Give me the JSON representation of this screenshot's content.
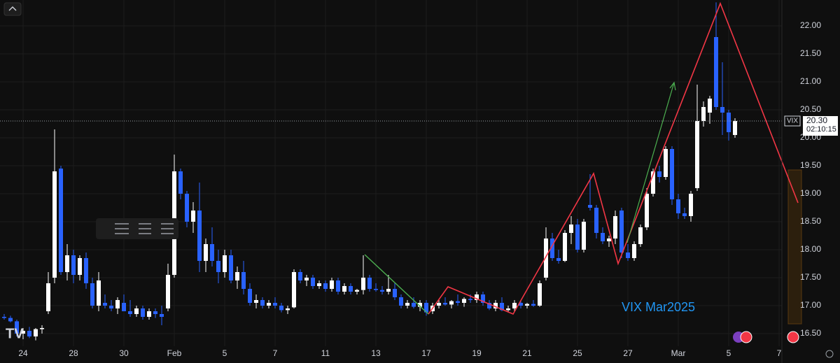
{
  "chart_data": {
    "type": "candlestick",
    "symbol": "VIX",
    "annotation": "VIX Mar2025",
    "countdown": "02:10:15",
    "last_price": {
      "value": 20.3,
      "label": "20.30"
    },
    "up_color": "#ffffff",
    "down_color": "#2962ff",
    "categories": [
      null,
      null,
      null,
      "24",
      null,
      null,
      null,
      null,
      null,
      null,
      null,
      "28",
      null,
      null,
      null,
      null,
      null,
      null,
      null,
      "30",
      null,
      null,
      null,
      null,
      null,
      null,
      null,
      "Feb",
      null,
      null,
      null,
      null,
      null,
      null,
      null,
      "5",
      null,
      null,
      null,
      null,
      null,
      null,
      null,
      "7",
      null,
      null,
      null,
      null,
      null,
      null,
      null,
      "11",
      null,
      null,
      null,
      null,
      null,
      null,
      null,
      "13",
      null,
      null,
      null,
      null,
      null,
      null,
      null,
      "17",
      null,
      null,
      null,
      null,
      null,
      null,
      null,
      "19",
      null,
      null,
      null,
      null,
      null,
      null,
      null,
      "21",
      null,
      null,
      null,
      null,
      null,
      null,
      null,
      "25",
      null,
      null,
      null,
      null,
      null,
      null,
      null,
      "27",
      null,
      null,
      null,
      null,
      null,
      null,
      null,
      "Mar",
      null,
      null,
      null,
      null,
      null,
      null,
      null,
      "5",
      null,
      null,
      null,
      null,
      null,
      null,
      null,
      "7"
    ],
    "open": [
      16.8,
      16.78,
      16.72,
      16.5,
      16.55,
      16.45,
      16.58,
      16.9,
      17.5,
      19.45,
      17.6,
      17.9,
      17.55,
      17.85,
      17.4,
      17.0,
      17.05,
      17.0,
      16.95,
      17.05,
      16.9,
      16.85,
      16.95,
      16.8,
      16.9,
      16.85,
      16.95,
      17.55,
      19.4,
      19.0,
      18.5,
      18.7,
      17.8,
      18.1,
      17.8,
      17.6,
      17.9,
      17.45,
      17.6,
      17.3,
      17.05,
      17.1,
      17.0,
      17.05,
      17.0,
      16.92,
      16.97,
      17.6,
      17.45,
      17.5,
      17.35,
      17.4,
      17.3,
      17.45,
      17.25,
      17.35,
      17.25,
      17.28,
      17.5,
      17.3,
      17.28,
      17.25,
      17.3,
      17.15,
      17.0,
      17.05,
      16.98,
      17.05,
      16.9,
      17.0,
      17.05,
      17.02,
      17.08,
      17.05,
      17.12,
      17.1,
      17.2,
      17.05,
      16.95,
      17.05,
      16.92,
      16.95,
      17.05,
      17.0,
      17.03,
      17.0,
      17.5,
      18.2,
      17.85,
      17.8,
      18.3,
      18.45,
      18.0,
      18.8,
      18.75,
      18.3,
      18.15,
      18.2,
      18.7,
      17.95,
      17.85,
      18.1,
      18.4,
      19.0,
      19.4,
      19.3,
      19.8,
      18.9,
      18.65,
      18.6,
      19.1,
      20.3,
      20.45,
      21.8,
      20.55,
      20.45,
      20.05,
      null,
      null,
      null,
      null,
      null,
      null,
      null
    ],
    "high": [
      16.85,
      16.82,
      16.75,
      16.6,
      16.62,
      16.6,
      16.65,
      17.6,
      20.15,
      19.5,
      18.1,
      18.0,
      17.9,
      17.95,
      17.5,
      17.6,
      17.2,
      17.1,
      17.15,
      17.2,
      17.1,
      17.0,
      17.0,
      16.95,
      16.95,
      17.0,
      17.75,
      19.7,
      19.45,
      19.05,
      18.85,
      19.2,
      18.2,
      18.4,
      18.0,
      18.0,
      18.0,
      17.7,
      17.8,
      17.4,
      17.2,
      17.15,
      17.1,
      17.15,
      17.05,
      17.0,
      17.65,
      17.65,
      17.55,
      17.55,
      17.45,
      17.45,
      17.5,
      17.5,
      17.4,
      17.4,
      17.3,
      17.9,
      17.55,
      17.4,
      17.35,
      17.55,
      17.4,
      17.2,
      17.1,
      17.15,
      17.1,
      17.1,
      17.05,
      17.1,
      17.15,
      17.1,
      17.2,
      17.15,
      17.2,
      17.25,
      17.25,
      17.1,
      17.1,
      17.15,
      17.0,
      17.1,
      17.1,
      17.05,
      17.1,
      17.45,
      18.4,
      18.3,
      18.0,
      18.35,
      18.6,
      18.55,
      18.55,
      19.35,
      18.8,
      18.4,
      18.25,
      18.7,
      18.75,
      18.1,
      18.15,
      18.45,
      19.1,
      19.45,
      19.5,
      19.85,
      19.85,
      19.0,
      18.75,
      19.05,
      20.95,
      20.65,
      20.75,
      22.42,
      21.35,
      20.5,
      20.35,
      null,
      null,
      null,
      null,
      null,
      null,
      null
    ],
    "low": [
      16.75,
      16.7,
      16.45,
      16.4,
      16.42,
      16.38,
      16.5,
      16.85,
      17.4,
      17.55,
      17.45,
      17.4,
      17.45,
      17.3,
      16.95,
      16.9,
      16.95,
      16.9,
      16.85,
      16.9,
      16.8,
      16.8,
      16.75,
      16.75,
      16.78,
      16.65,
      16.9,
      17.5,
      18.9,
      18.4,
      18.3,
      17.6,
      17.6,
      17.7,
      17.4,
      17.5,
      17.4,
      17.3,
      17.2,
      17.0,
      16.95,
      16.95,
      16.95,
      16.95,
      16.88,
      16.85,
      16.95,
      17.4,
      17.35,
      17.3,
      17.3,
      17.25,
      17.25,
      17.2,
      17.2,
      17.2,
      17.2,
      17.2,
      17.25,
      17.25,
      17.2,
      17.2,
      17.1,
      16.95,
      16.95,
      16.95,
      16.9,
      16.82,
      16.85,
      16.95,
      17.0,
      16.95,
      17.0,
      16.98,
      17.05,
      17.05,
      17.0,
      16.92,
      16.9,
      16.9,
      16.88,
      16.9,
      16.95,
      16.95,
      16.98,
      16.98,
      17.45,
      17.8,
      17.75,
      17.78,
      18.1,
      17.95,
      17.95,
      18.7,
      18.2,
      18.1,
      18.05,
      18.1,
      17.85,
      17.8,
      17.8,
      18.05,
      18.35,
      18.95,
      19.2,
      19.25,
      18.8,
      18.55,
      18.55,
      18.5,
      19.05,
      20.2,
      20.25,
      20.5,
      20.05,
      19.95,
      20.0,
      null,
      null,
      null,
      null,
      null,
      null,
      null
    ],
    "close": [
      16.78,
      16.72,
      16.5,
      16.55,
      16.45,
      16.58,
      16.6,
      17.4,
      19.4,
      17.6,
      17.9,
      17.55,
      17.85,
      17.4,
      17.0,
      17.45,
      17.0,
      16.95,
      17.1,
      16.9,
      16.85,
      16.95,
      16.8,
      16.9,
      16.85,
      16.8,
      17.55,
      19.4,
      19.0,
      18.5,
      18.7,
      17.8,
      18.1,
      17.8,
      17.6,
      17.9,
      17.45,
      17.6,
      17.3,
      17.05,
      17.1,
      17.0,
      17.05,
      17.0,
      16.92,
      16.95,
      17.6,
      17.45,
      17.5,
      17.35,
      17.4,
      17.3,
      17.45,
      17.25,
      17.35,
      17.25,
      17.28,
      17.5,
      17.3,
      17.28,
      17.25,
      17.3,
      17.15,
      17.0,
      17.05,
      16.98,
      17.05,
      16.88,
      17.0,
      17.05,
      17.02,
      17.08,
      17.05,
      17.12,
      17.1,
      17.2,
      17.05,
      16.95,
      17.05,
      16.92,
      16.95,
      17.05,
      17.0,
      17.03,
      17.0,
      17.4,
      18.2,
      17.85,
      17.8,
      18.3,
      18.45,
      18.0,
      18.5,
      18.75,
      18.3,
      18.15,
      18.2,
      18.6,
      17.95,
      17.85,
      18.1,
      18.4,
      19.0,
      19.4,
      19.3,
      19.8,
      18.9,
      18.65,
      18.6,
      19.0,
      20.3,
      20.55,
      20.7,
      20.55,
      20.45,
      20.1,
      20.3,
      null,
      null,
      null,
      null,
      null,
      null,
      null
    ],
    "ylim": [
      15.975,
      22.4625
    ],
    "yticks": [
      {
        "value": 16.5,
        "label": "16.50"
      },
      {
        "value": 17,
        "label": "17.00"
      },
      {
        "value": 17.5,
        "label": "17.50"
      },
      {
        "value": 18,
        "label": "18.00"
      },
      {
        "value": 18.5,
        "label": "18.50"
      },
      {
        "value": 19,
        "label": "19.00"
      },
      {
        "value": 19.5,
        "label": "19.50"
      },
      {
        "value": 20,
        "label": "20.00"
      },
      {
        "value": 20.5,
        "label": "20.50"
      },
      {
        "value": 21,
        "label": "21.00"
      },
      {
        "value": 21.5,
        "label": "21.50"
      },
      {
        "value": 22,
        "label": "22.00"
      }
    ],
    "grid": true
  }
}
